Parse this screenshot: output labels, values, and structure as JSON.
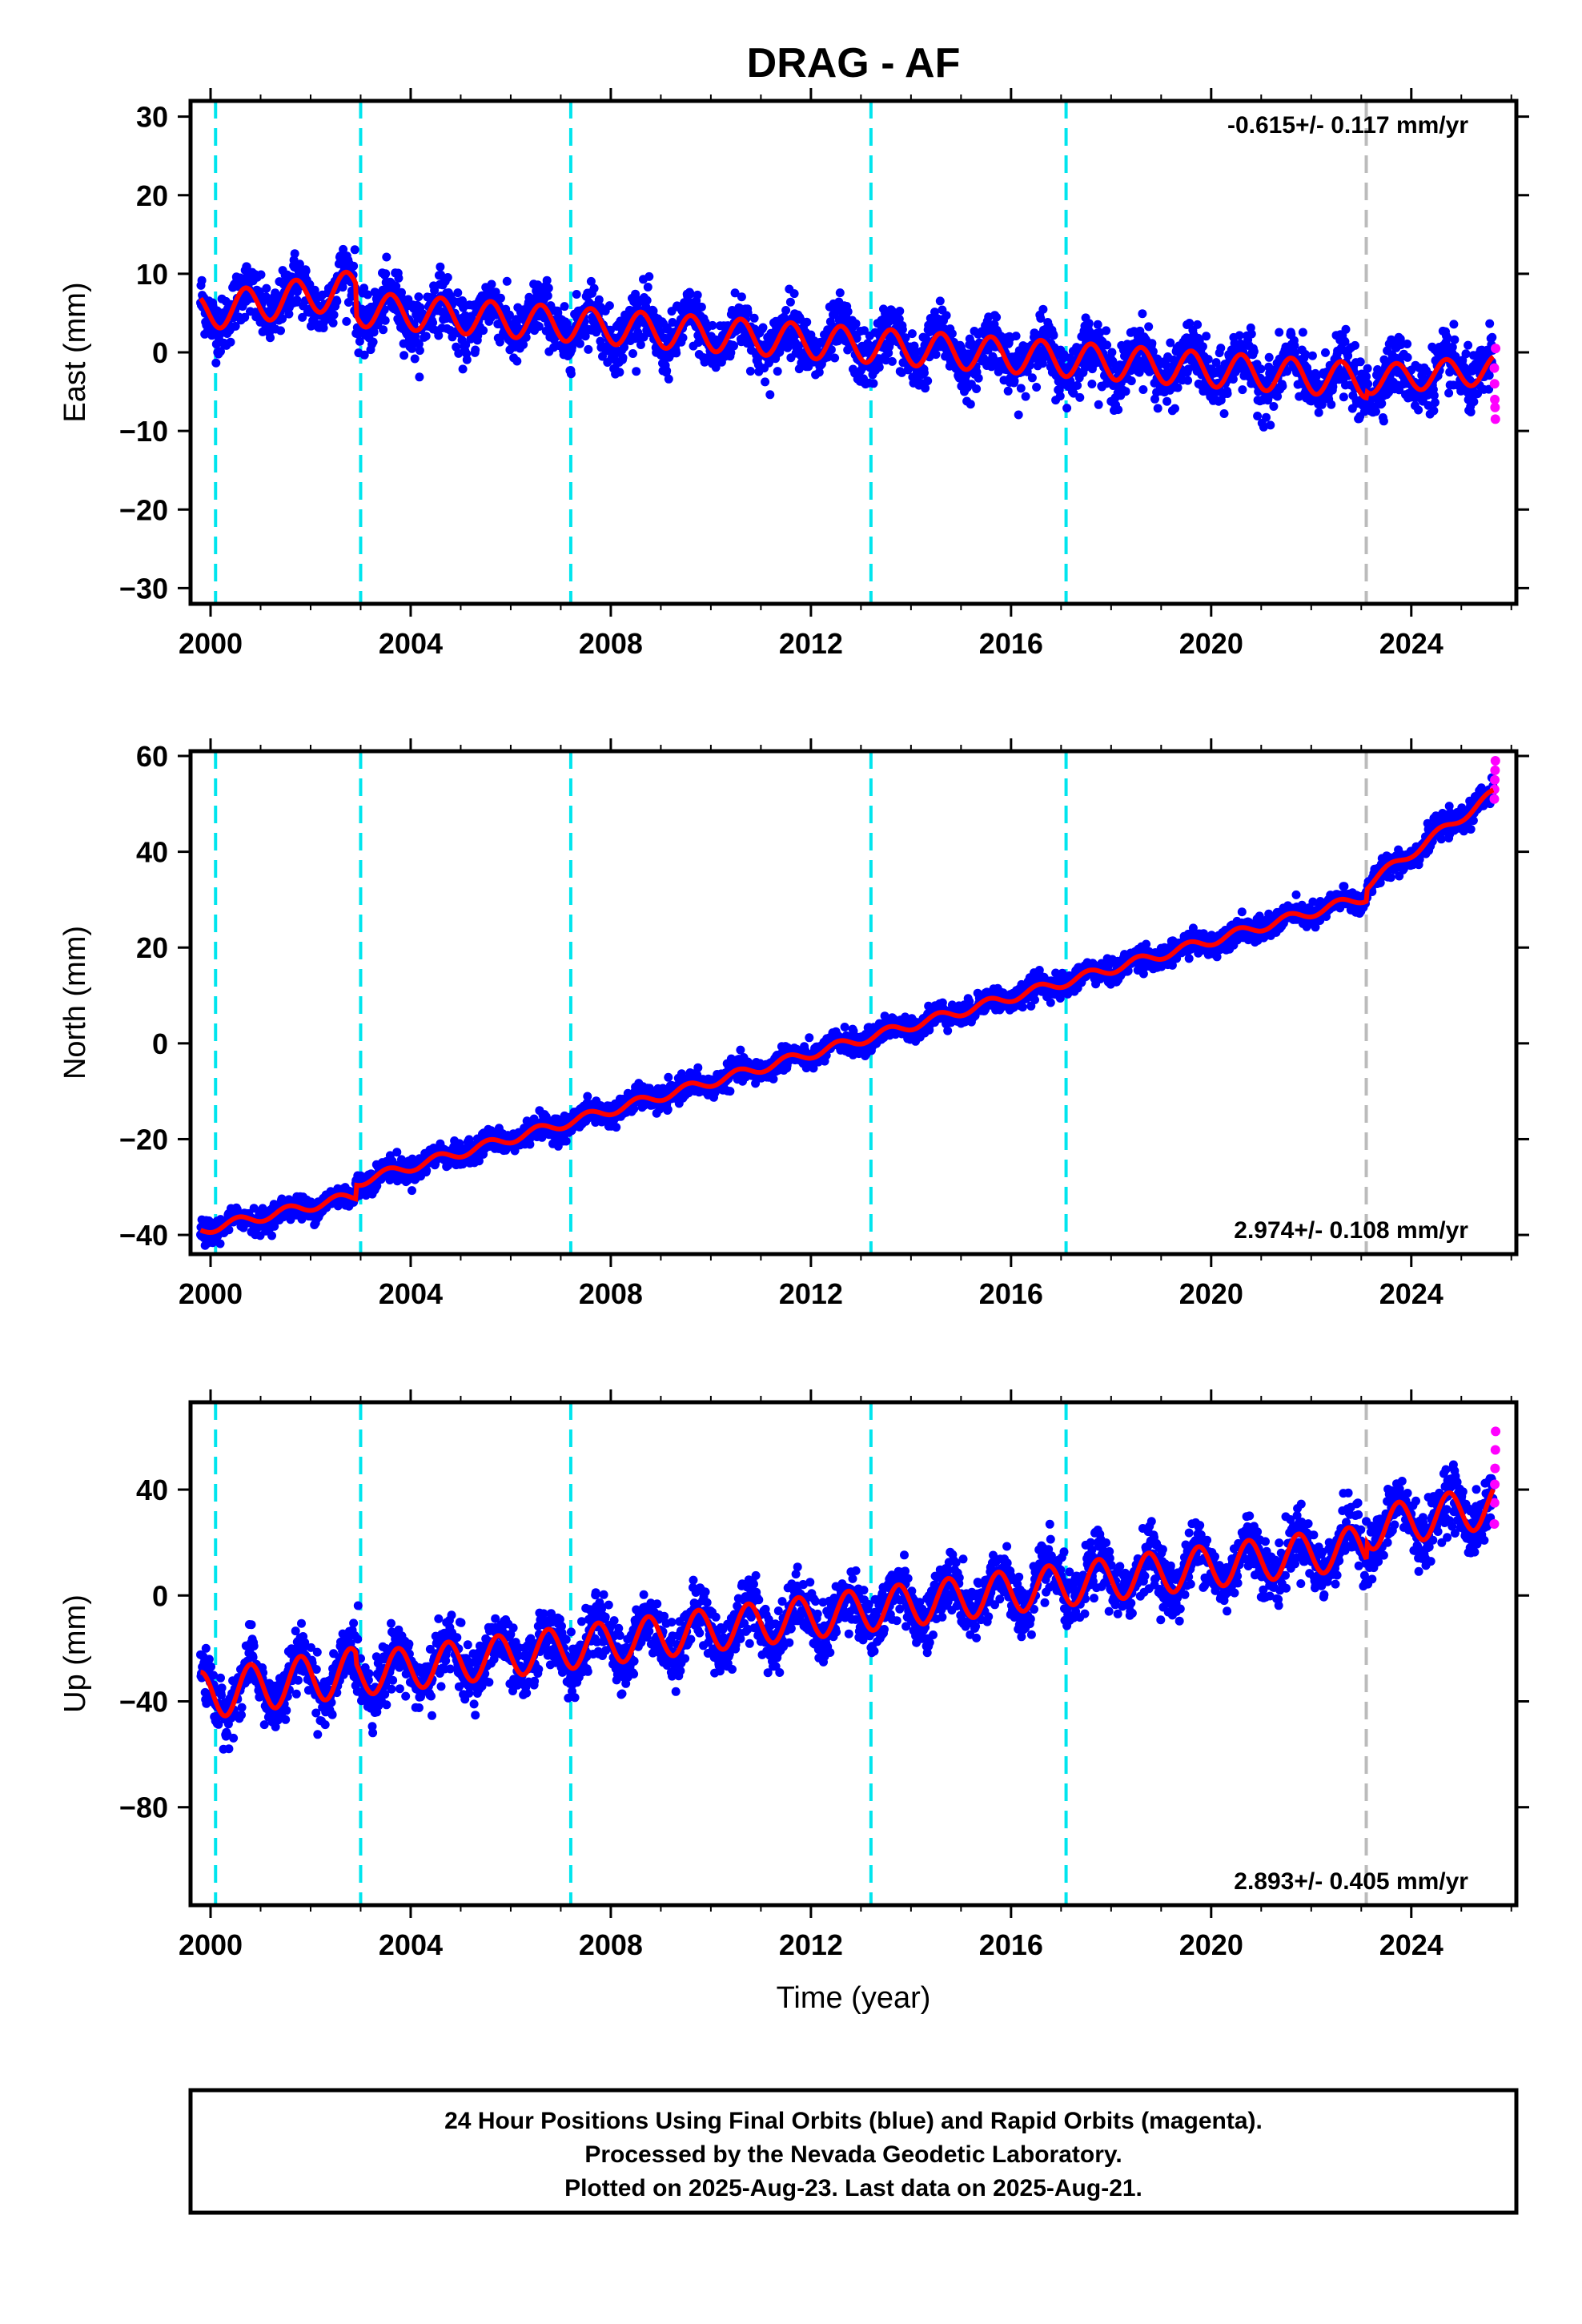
{
  "title": "DRAG - AF",
  "footer": {
    "lines": [
      "24 Hour Positions Using Final Orbits (blue) and Rapid Orbits (magenta).",
      "Processed by the Nevada Geodetic Laboratory.",
      "Plotted on 2025-Aug-23. Last data on 2025-Aug-21."
    ]
  },
  "colors": {
    "final_orbits": "#0000ff",
    "rapid_orbits": "#ff00ff",
    "model_fit": "#ff0000",
    "equipment_change": "#00e5ee",
    "earthquake": "#bbbbbb"
  },
  "chart_data": [
    {
      "type": "scatter",
      "component": "east",
      "ylabel": "East (mm)",
      "xlabel": "",
      "xlim": [
        1999.6,
        2026.1
      ],
      "ylim": [
        -32,
        32
      ],
      "xticks": [
        2000,
        2004,
        2008,
        2012,
        2016,
        2020,
        2024
      ],
      "yticks": [
        -30,
        -20,
        -10,
        0,
        10,
        20,
        30
      ],
      "rate_text": "-0.615+/- 0.117 mm/yr",
      "rate_position": "top-right",
      "equipment_change_years": [
        2000.1,
        2003.0,
        2007.2,
        2013.2,
        2017.1
      ],
      "event_years": [
        2023.1
      ],
      "segments": [
        {
          "from": 1999.8,
          "to": 2002.9,
          "start": 5.0,
          "rate": 1.0,
          "amp": 2.3,
          "phase": 0.45
        },
        {
          "from": 2002.9,
          "to": 2023.1,
          "start": 5.5,
          "rate": -0.45,
          "amp": 2.2,
          "phase": 0.35
        },
        {
          "from": 2023.1,
          "to": 2025.64,
          "start": -3.5,
          "rate": 0.5,
          "amp": 1.8,
          "phase": 0.45
        }
      ],
      "noise": 1.8,
      "rapid_values": [
        -2,
        -4,
        -6,
        -7,
        -8.5,
        0.5
      ]
    },
    {
      "type": "scatter",
      "component": "north",
      "ylabel": "North (mm)",
      "xlabel": "",
      "xlim": [
        1999.6,
        2026.1
      ],
      "ylim": [
        -44,
        61
      ],
      "xticks": [
        2000,
        2004,
        2008,
        2012,
        2016,
        2020,
        2024
      ],
      "yticks": [
        -40,
        -20,
        0,
        20,
        40,
        60
      ],
      "rate_text": "2.974+/- 0.108 mm/yr",
      "rate_position": "bottom-right",
      "equipment_change_years": [
        2000.1,
        2003.0,
        2007.2,
        2013.2,
        2017.1
      ],
      "event_years": [
        2023.1
      ],
      "segments": [
        {
          "from": 1999.8,
          "to": 2002.9,
          "start": -39.0,
          "rate": 2.3,
          "amp": 1.0,
          "phase": 0.3
        },
        {
          "from": 2002.9,
          "to": 2023.1,
          "start": -29.0,
          "rate": 2.95,
          "amp": 1.0,
          "phase": 0.3
        },
        {
          "from": 2023.1,
          "to": 2025.64,
          "start": 33.0,
          "rate": 7.5,
          "amp": 1.0,
          "phase": 0.3
        }
      ],
      "noise": 1.2,
      "rapid_values": [
        51,
        53,
        55,
        57,
        59
      ]
    },
    {
      "type": "scatter",
      "component": "up",
      "ylabel": "Up (mm)",
      "xlabel": "Time (year)",
      "xlim": [
        1999.6,
        2026.1
      ],
      "ylim": [
        -117,
        73
      ],
      "xticks": [
        2000,
        2004,
        2008,
        2012,
        2016,
        2020,
        2024
      ],
      "yticks": [
        -80,
        -40,
        0,
        40
      ],
      "rate_text": "2.893+/- 0.405 mm/yr",
      "rate_position": "bottom-right",
      "equipment_change_years": [
        2000.1,
        2003.0,
        2007.2,
        2013.2,
        2017.1
      ],
      "event_years": [
        2023.1
      ],
      "segments": [
        {
          "from": 1999.8,
          "to": 2002.9,
          "start": -38.0,
          "rate": 3.0,
          "amp": 9.0,
          "phase": 0.55
        },
        {
          "from": 2002.9,
          "to": 2023.1,
          "start": -30.0,
          "rate": 2.4,
          "amp": 8.0,
          "phase": 0.5
        },
        {
          "from": 2023.1,
          "to": 2025.64,
          "start": 25.0,
          "rate": 3.5,
          "amp": 8.0,
          "phase": 0.5
        }
      ],
      "noise": 5.5,
      "rapid_values": [
        27,
        35,
        42,
        48,
        55,
        62
      ]
    }
  ]
}
